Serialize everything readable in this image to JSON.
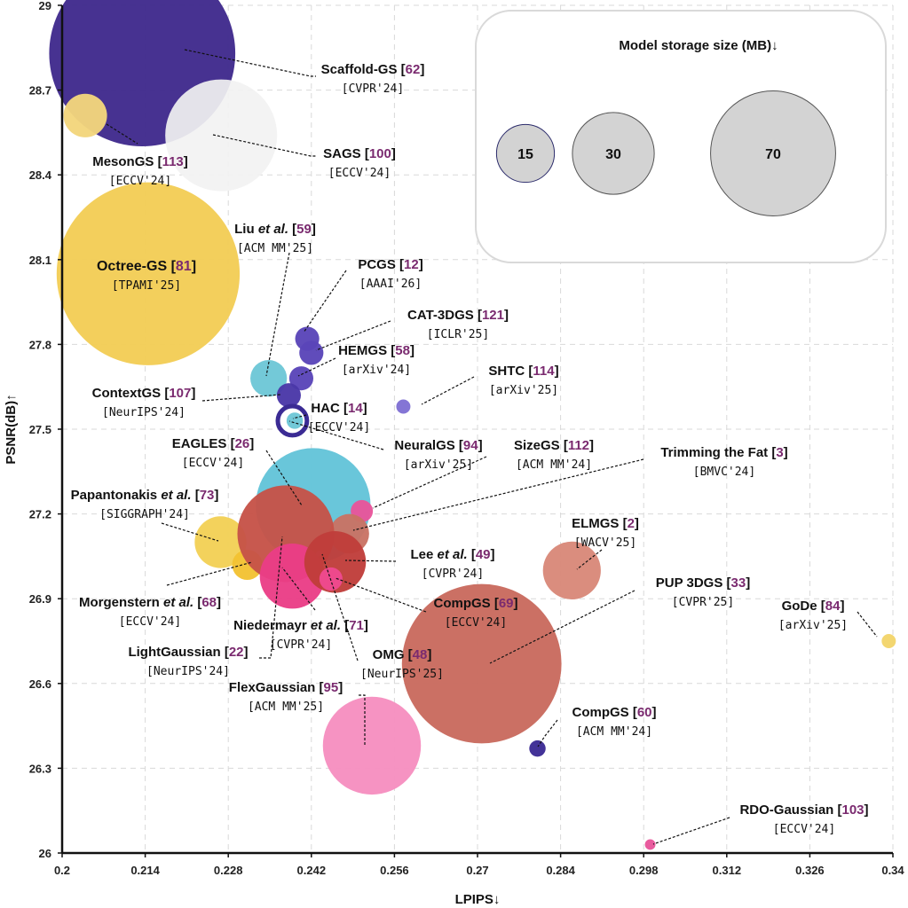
{
  "chart_data": {
    "type": "scatter",
    "title": "",
    "xlabel": "LPIPS↓",
    "ylabel": "PSNR(dB)↑",
    "xlim": [
      0.2,
      0.34
    ],
    "ylim": [
      26,
      29
    ],
    "xticks": [
      "0.2",
      "0.214",
      "0.228",
      "0.242",
      "0.256",
      "0.27",
      "0.284",
      "0.298",
      "0.312",
      "0.326",
      "0.34"
    ],
    "yticks": [
      "26",
      "26.3",
      "26.6",
      "26.9",
      "27.2",
      "27.5",
      "27.8",
      "28.1",
      "28.4",
      "28.7",
      "29"
    ],
    "grid": true,
    "legend": {
      "title": "Model storage size (MB)↓",
      "placement": "top-right",
      "sizes": [
        {
          "value": "15",
          "mb": 15
        },
        {
          "value": "30",
          "mb": 30
        },
        {
          "value": "70",
          "mb": 70
        }
      ]
    },
    "points": [
      {
        "id": "scaffold-gs",
        "name": "Scaffold-GS",
        "cite": "62",
        "venue": "[CVPR'24]",
        "x": 0.2135,
        "y": 28.83,
        "size_mb": 155,
        "color": "#3f2a8c"
      },
      {
        "id": "sags",
        "name": "SAGS",
        "cite": "100",
        "venue": "[ECCV'24]",
        "x": 0.2268,
        "y": 28.54,
        "size_mb": 56,
        "color": "#f2f2f2"
      },
      {
        "id": "mesongs",
        "name": "MesonGS",
        "cite": "113",
        "venue": "[ECCV'24]",
        "x": 0.2039,
        "y": 28.61,
        "size_mb": 8.5,
        "color": "#f3d57c"
      },
      {
        "id": "octree-gs",
        "name": "Octree-GS",
        "cite": "81",
        "venue": "[TPAMI'25]",
        "x": 0.2145,
        "y": 28.05,
        "size_mb": 150,
        "color": "#f3cd55",
        "inner": true
      },
      {
        "id": "liu",
        "name": "Liu",
        "name_it": "et al.",
        "cite": "59",
        "venue": "[ACM MM'25]",
        "x": 0.2348,
        "y": 27.68,
        "size_mb": 6,
        "color": "#6dc7d6"
      },
      {
        "id": "pcgs",
        "name": "PCGS",
        "cite": "12",
        "venue": "[AAAI'26]",
        "x": 0.2413,
        "y": 27.82,
        "size_mb": 2.6,
        "color": "#5a45b8"
      },
      {
        "id": "cat-3dgs",
        "name": "CAT-3DGS",
        "cite": "121",
        "venue": "[ICLR'25]",
        "x": 0.242,
        "y": 27.77,
        "size_mb": 2.6,
        "color": "#5a45b8"
      },
      {
        "id": "hemgs",
        "name": "HEMGS",
        "cite": "58",
        "venue": "[arXiv'24]",
        "x": 0.2403,
        "y": 27.68,
        "size_mb": 2.6,
        "color": "#5a45b8"
      },
      {
        "id": "contextgs",
        "name": "ContextGS",
        "cite": "107",
        "venue": "[NeurIPS'24]",
        "x": 0.2382,
        "y": 27.62,
        "size_mb": 2.6,
        "color": "#4a37a8"
      },
      {
        "id": "shtc",
        "name": "SHTC",
        "cite": "114",
        "venue": "[arXiv'25]",
        "x": 0.2575,
        "y": 27.58,
        "size_mb": 0.9,
        "color": "#7f6fd3"
      },
      {
        "id": "hac",
        "name": "HAC",
        "cite": "14",
        "venue": "[ECCV'24]",
        "x": 0.2388,
        "y": 27.53,
        "size_mb": 3.8,
        "color": "#3b2b94"
      },
      {
        "id": "neuralgs",
        "name": "NeuralGS",
        "cite": "94",
        "venue": "[arXiv'25]",
        "x": 0.2392,
        "y": 27.53,
        "size_mb": 1.2,
        "color": "#6dc7d6"
      },
      {
        "id": "eagles",
        "name": "EAGLES",
        "cite": "26",
        "venue": "[ECCV'24]",
        "x": 0.2423,
        "y": 27.23,
        "size_mb": 59,
        "color": "#63c4d8"
      },
      {
        "id": "sizegs",
        "name": "SizeGS",
        "cite": "112",
        "venue": "[ACM MM'24]",
        "x": 0.2505,
        "y": 27.21,
        "size_mb": 2.2,
        "color": "#e8549a"
      },
      {
        "id": "trimming-the-fat",
        "name": "Trimming the Fat",
        "cite": "3",
        "venue": "[BMVC'24]",
        "x": 0.2484,
        "y": 27.13,
        "size_mb": 7,
        "color": "#c97264"
      },
      {
        "id": "papantonakis",
        "name": "Papantonakis",
        "name_it": "et al.",
        "cite": "73",
        "venue": "[SIGGRAPH'24]",
        "x": 0.2267,
        "y": 27.1,
        "size_mb": 12,
        "color": "#f3d055"
      },
      {
        "id": "morgenstern",
        "name": "Morgenstern",
        "name_it": "et al.",
        "cite": "68",
        "venue": "[ECCV'24]",
        "x": 0.2312,
        "y": 27.02,
        "size_mb": 4.1,
        "color": "#f2c232"
      },
      {
        "id": "lightgaussian",
        "name": "LightGaussian",
        "cite": "22",
        "venue": "[NeurIPS'24]",
        "x": 0.2377,
        "y": 27.13,
        "size_mb": 42,
        "color": "#c65248"
      },
      {
        "id": "niedermayr",
        "name": "Niedermayr",
        "name_it": "et al.",
        "cite": "71",
        "venue": "[CVPR'24]",
        "x": 0.2388,
        "y": 26.98,
        "size_mb": 19,
        "color": "#ea3d86"
      },
      {
        "id": "omg",
        "name": "OMG",
        "cite": "48",
        "venue": "[NeurIPS'25]",
        "x": 0.2433,
        "y": 27.06,
        "size_mb": 0.15,
        "color": "#e8549a"
      },
      {
        "id": "lee",
        "name": "Lee",
        "name_it": "et al.",
        "cite": "49",
        "venue": "[CVPR'24]",
        "x": 0.246,
        "y": 27.03,
        "size_mb": 17,
        "color": "#bf3d3a"
      },
      {
        "id": "compgs-eccv",
        "name": "CompGS",
        "cite": "69",
        "venue": "[ECCV'24]",
        "x": 0.2453,
        "y": 26.97,
        "size_mb": 2.4,
        "color": "#ef4a90"
      },
      {
        "id": "elmgs",
        "name": "ELMGS",
        "cite": "2",
        "venue": "[WACV'25]",
        "x": 0.2859,
        "y": 27.0,
        "size_mb": 15,
        "color": "#d88879"
      },
      {
        "id": "pup-3dgs",
        "name": "PUP 3DGS",
        "cite": "33",
        "venue": "[CVPR'25]",
        "x": 0.2707,
        "y": 26.67,
        "size_mb": 114,
        "color": "#c96a5e"
      },
      {
        "id": "gode",
        "name": "GoDe",
        "cite": "84",
        "venue": "[arXiv'25]",
        "x": 0.3393,
        "y": 26.75,
        "size_mb": 0.9,
        "color": "#f3d46a"
      },
      {
        "id": "flexgaussian",
        "name": "FlexGaussian",
        "cite": "95",
        "venue": "[ACM MM'25]",
        "x": 0.2522,
        "y": 26.38,
        "size_mb": 43,
        "color": "#f68fc0"
      },
      {
        "id": "compgs-mm",
        "name": "CompGS",
        "cite": "60",
        "venue": "[ACM MM'24]",
        "x": 0.2801,
        "y": 26.37,
        "size_mb": 1.2,
        "color": "#3b2b94"
      },
      {
        "id": "rdo-gaussian",
        "name": "RDO-Gaussian",
        "cite": "103",
        "venue": "[ECCV'24]",
        "x": 0.2991,
        "y": 26.03,
        "size_mb": 0.5,
        "color": "#e8549a"
      }
    ]
  }
}
